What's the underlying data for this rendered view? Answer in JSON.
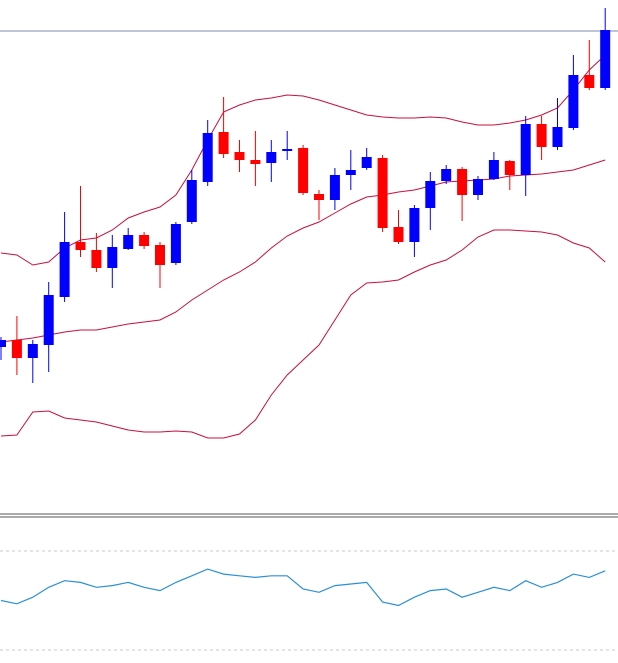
{
  "chart_data": [
    {
      "type": "candlestick",
      "open": [
        173,
        180,
        162,
        175,
        223,
        278,
        270,
        252,
        271,
        285,
        275,
        257,
        298,
        338,
        388,
        368,
        360,
        357,
        369,
        372,
        326,
        320,
        345,
        352,
        362,
        293,
        278,
        312,
        339,
        351,
        325,
        341,
        359,
        345,
        396,
        373,
        392,
        445,
        432
      ],
      "high": [
        183,
        204,
        180,
        238,
        308,
        334,
        287,
        285,
        292,
        288,
        278,
        298,
        350,
        400,
        423,
        380,
        389,
        380,
        389,
        375,
        330,
        352,
        370,
        372,
        365,
        310,
        315,
        348,
        355,
        353,
        344,
        368,
        360,
        404,
        404,
        422,
        465,
        480,
        512
      ],
      "low": [
        160,
        145,
        137,
        148,
        218,
        263,
        248,
        232,
        270,
        271,
        232,
        255,
        296,
        334,
        362,
        348,
        334,
        338,
        360,
        325,
        300,
        310,
        330,
        350,
        288,
        276,
        263,
        290,
        336,
        299,
        320,
        340,
        330,
        324,
        360,
        370,
        390,
        430,
        430
      ],
      "close": [
        180,
        162,
        176,
        225,
        278,
        270,
        252,
        273,
        285,
        274,
        255,
        296,
        340,
        387,
        366,
        360,
        356,
        368,
        371,
        327,
        320,
        345,
        350,
        363,
        292,
        278,
        312,
        339,
        351,
        325,
        341,
        360,
        345,
        396,
        373,
        393,
        445,
        432,
        490
      ],
      "up_color": "#0000ff",
      "down_color": "#ff0000",
      "ylim": [
        0,
        520
      ],
      "bands": {
        "color": "#c8103c",
        "upper": [
          267,
          265,
          255,
          258,
          272,
          280,
          282,
          290,
          302,
          308,
          313,
          325,
          350,
          380,
          408,
          415,
          420,
          422,
          425,
          424,
          420,
          415,
          410,
          405,
          403,
          402,
          402,
          403,
          402,
          398,
          395,
          395,
          397,
          400,
          405,
          412,
          430,
          450,
          465
        ],
        "middle": [
          178,
          180,
          182,
          185,
          188,
          190,
          190,
          193,
          196,
          198,
          200,
          208,
          220,
          230,
          240,
          248,
          258,
          272,
          284,
          292,
          298,
          307,
          316,
          323,
          325,
          328,
          330,
          334,
          338,
          339,
          340,
          341,
          344,
          345,
          346,
          348,
          350,
          355,
          360
        ],
        "lower": [
          84,
          85,
          108,
          109,
          102,
          100,
          98,
          94,
          90,
          88,
          88,
          89,
          88,
          82,
          82,
          86,
          100,
          125,
          145,
          160,
          175,
          200,
          225,
          237,
          238,
          240,
          248,
          255,
          260,
          270,
          283,
          290,
          290,
          289,
          288,
          285,
          277,
          272,
          258
        ]
      },
      "price_line": 489,
      "price_line_color": "#7d8bb0"
    },
    {
      "type": "line",
      "values": [
        50,
        48,
        52,
        58,
        62,
        61,
        58,
        59,
        61,
        58,
        56,
        61,
        65,
        69,
        66,
        65,
        64,
        65,
        65,
        57,
        55,
        59,
        60,
        61,
        49,
        47,
        52,
        56,
        57,
        52,
        55,
        58,
        56,
        62,
        58,
        61,
        66,
        64,
        68
      ],
      "color": "#2a8fd8",
      "ylim": [
        0,
        100
      ],
      "levels": [
        20,
        80
      ],
      "level_color": "#c8c8c8"
    }
  ]
}
